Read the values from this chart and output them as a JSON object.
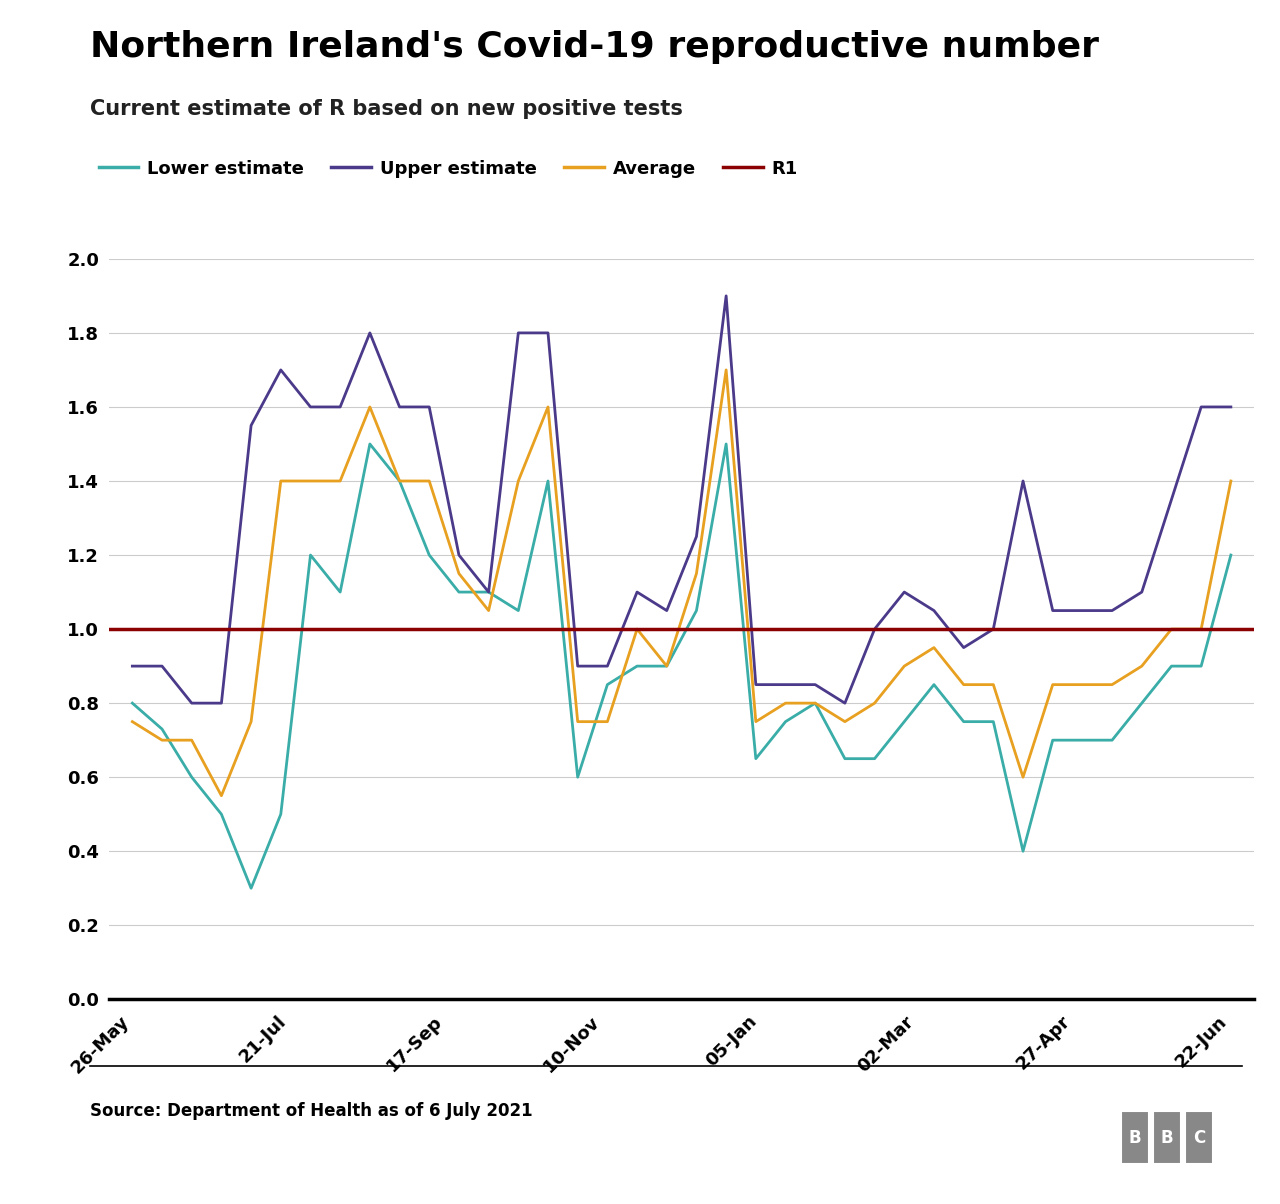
{
  "title": "Northern Ireland's Covid-19 reproductive number",
  "subtitle": "Current estimate of R based on new positive tests",
  "source": "Source: Department of Health as of 6 July 2021",
  "x_labels": [
    "26-May",
    "21-Jul",
    "17-Sep",
    "10-Nov",
    "05-Jan",
    "02-Mar",
    "27-Apr",
    "22-Jun"
  ],
  "lower_color": "#3aada8",
  "upper_color": "#4b3a8a",
  "average_color": "#e8a020",
  "r1_color": "#8b0000",
  "lower_estimate": [
    0.8,
    0.73,
    0.6,
    0.5,
    0.3,
    0.5,
    1.2,
    1.1,
    1.5,
    1.4,
    1.2,
    1.1,
    1.1,
    1.05,
    1.4,
    0.6,
    0.85,
    0.9,
    0.9,
    1.05,
    1.5,
    0.65,
    0.75,
    0.8,
    0.65,
    0.65,
    0.75,
    0.85,
    0.75,
    0.75,
    0.4,
    0.7,
    0.7,
    0.7,
    0.8,
    0.9,
    0.9,
    1.2
  ],
  "upper_estimate": [
    0.9,
    0.9,
    0.8,
    0.8,
    1.55,
    1.7,
    1.6,
    1.6,
    1.8,
    1.6,
    1.6,
    1.2,
    1.1,
    1.8,
    1.8,
    0.9,
    0.9,
    1.1,
    1.05,
    1.25,
    1.9,
    0.85,
    0.85,
    0.85,
    0.8,
    1.0,
    1.1,
    1.05,
    0.95,
    1.0,
    1.4,
    1.05,
    1.05,
    1.05,
    1.1,
    1.35,
    1.6,
    1.6
  ],
  "average": [
    0.75,
    0.7,
    0.7,
    0.55,
    0.75,
    1.4,
    1.4,
    1.4,
    1.6,
    1.4,
    1.4,
    1.15,
    1.05,
    1.4,
    1.6,
    0.75,
    0.75,
    1.0,
    0.9,
    1.15,
    1.7,
    0.75,
    0.8,
    0.8,
    0.75,
    0.8,
    0.9,
    0.95,
    0.85,
    0.85,
    0.6,
    0.85,
    0.85,
    0.85,
    0.9,
    1.0,
    1.0,
    1.4
  ],
  "ylim": [
    0.0,
    2.0
  ],
  "yticks": [
    0.0,
    0.2,
    0.4,
    0.6,
    0.8,
    1.0,
    1.2,
    1.4,
    1.6,
    1.8,
    2.0
  ],
  "background_color": "#ffffff",
  "grid_color": "#cccccc",
  "title_fontsize": 26,
  "subtitle_fontsize": 15,
  "legend_fontsize": 13,
  "tick_fontsize": 13,
  "source_fontsize": 12
}
